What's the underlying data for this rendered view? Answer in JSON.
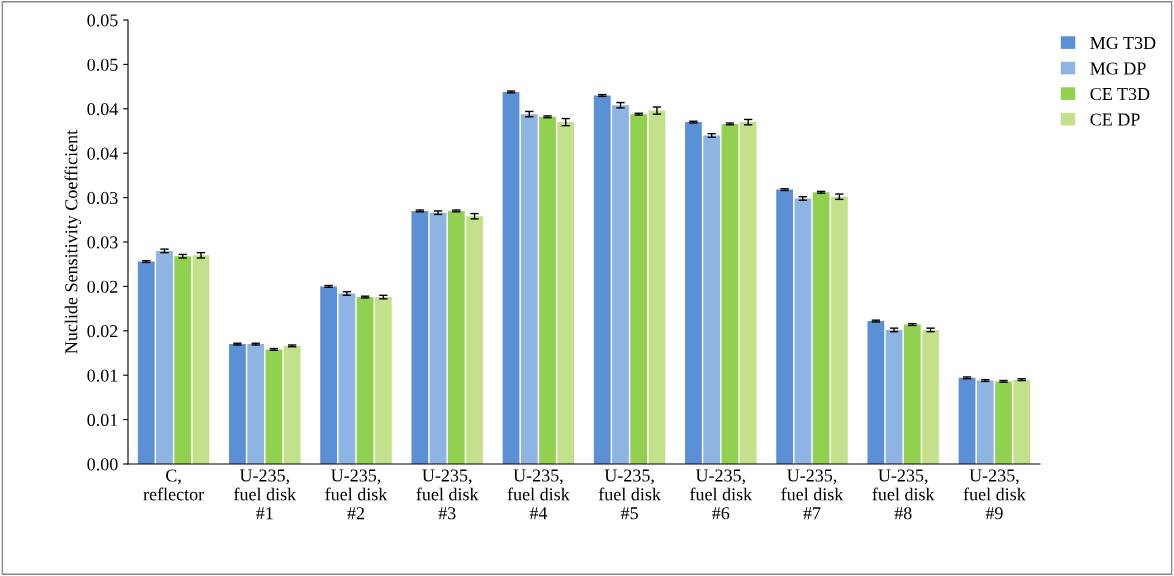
{
  "chart_data": {
    "type": "bar",
    "ylabel": "Nuclide Sensitivity Coefficient",
    "categories": [
      "C,\nreflector",
      "U-235,\nfuel disk\n#1",
      "U-235,\nfuel disk\n#2",
      "U-235,\nfuel disk\n#3",
      "U-235,\nfuel disk\n#4",
      "U-235,\nfuel disk\n#5",
      "U-235,\nfuel disk\n#6",
      "U-235,\nfuel disk\n#7",
      "U-235,\nfuel disk\n#8",
      "U-235,\nfuel disk\n#9"
    ],
    "series": [
      {
        "name": "MG T3D",
        "color": "#5b8fd6",
        "values": [
          0.0228,
          0.0135,
          0.02,
          0.0285,
          0.0419,
          0.0415,
          0.0385,
          0.0309,
          0.0161,
          0.0097
        ],
        "errors": [
          0.0001,
          0.0001,
          0.0001,
          0.0001,
          0.0001,
          0.0001,
          0.0001,
          0.0001,
          0.0001,
          0.0001
        ]
      },
      {
        "name": "MG DP",
        "color": "#8eb4e3",
        "values": [
          0.024,
          0.0135,
          0.0192,
          0.0283,
          0.0394,
          0.0404,
          0.037,
          0.0299,
          0.0151,
          0.0094
        ],
        "errors": [
          0.0002,
          0.0001,
          0.0002,
          0.0002,
          0.0003,
          0.0003,
          0.0002,
          0.0002,
          0.0002,
          0.0001
        ]
      },
      {
        "name": "CE T3D",
        "color": "#92d050",
        "values": [
          0.0234,
          0.0129,
          0.0188,
          0.0285,
          0.0391,
          0.0394,
          0.0383,
          0.0306,
          0.0157,
          0.0093
        ],
        "errors": [
          0.0002,
          0.0001,
          0.0001,
          0.0001,
          0.0001,
          0.0001,
          0.0001,
          0.0001,
          0.0001,
          0.0001
        ]
      },
      {
        "name": "CE DP",
        "color": "#c3e08a",
        "values": [
          0.0235,
          0.0133,
          0.0188,
          0.0279,
          0.0385,
          0.0398,
          0.0385,
          0.0301,
          0.0151,
          0.0095
        ],
        "errors": [
          0.0003,
          0.0001,
          0.0002,
          0.0003,
          0.0004,
          0.0004,
          0.0003,
          0.0003,
          0.0002,
          0.0001
        ]
      }
    ],
    "ylim": [
      0,
      0.05
    ],
    "yticks": [
      {
        "value": 0,
        "label": "0.00"
      },
      {
        "value": 0.005,
        "label": "0.01"
      },
      {
        "value": 0.01,
        "label": "0.01"
      },
      {
        "value": 0.015,
        "label": "0.02"
      },
      {
        "value": 0.02,
        "label": "0.02"
      },
      {
        "value": 0.025,
        "label": "0.03"
      },
      {
        "value": 0.03,
        "label": "0.03"
      },
      {
        "value": 0.035,
        "label": "0.04"
      },
      {
        "value": 0.04,
        "label": "0.04"
      },
      {
        "value": 0.045,
        "label": "0.05"
      },
      {
        "value": 0.05,
        "label": "0.05"
      }
    ],
    "grid": false,
    "legend": "top right"
  }
}
